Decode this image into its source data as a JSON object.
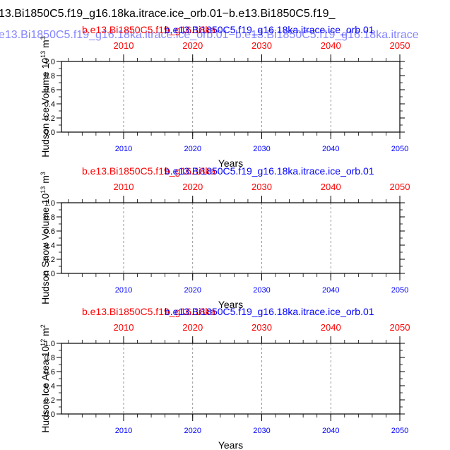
{
  "page": {
    "title_line1": "13.Bi1850C5.f19_g16.18ka.itrace.ice_orb.01−b.e13.Bi1850C5.f19_",
    "title_line2": "e13.Bi1850C5.f19_g16.18ka.itrace.ice_orb.01−b.e13.Bi1850C5.f19_g16.18ka.itrace"
  },
  "colors": {
    "red": "#ff0000",
    "blue": "#0000ff",
    "black": "#000000",
    "grid": "#808080"
  },
  "chart_data": [
    {
      "type": "line",
      "title_left": "b.e13.Bi1850C5.f19_g16.18ka",
      "title_right": "b.e13.Bi1850C5.f19_g16.18ka.itrace.ice_orb.01",
      "ylabel": "Hudson Ice Volume 10",
      "ylabel_exp": "13",
      "ylabel_unit": " m",
      "ylabel_unit_exp": "3",
      "xlabel": "Years",
      "ylim": [
        0,
        1
      ],
      "xlim": [
        2001,
        2050
      ],
      "xticks": [
        "2010",
        "2020",
        "2030",
        "2040",
        "2050"
      ],
      "top_xticks": [
        "2010",
        "2020",
        "2030",
        "2040",
        "2050"
      ],
      "yticks": [
        "0.0",
        "0.2",
        "0.4",
        "0.6",
        "0.8",
        "1.0"
      ],
      "grid": "vertical dashed",
      "series": []
    },
    {
      "type": "line",
      "title_left": "b.e13.Bi1850C5.f19_g16.18ka",
      "title_right": "b.e13.Bi1850C5.f19_g16.18ka.itrace.ice_orb.01",
      "ylabel": "Hudson Snow Volume 10",
      "ylabel_exp": "13",
      "ylabel_unit": " m",
      "ylabel_unit_exp": "3",
      "xlabel": "Years",
      "ylim": [
        0,
        1
      ],
      "xlim": [
        2001,
        2050
      ],
      "xticks": [
        "2010",
        "2020",
        "2030",
        "2040",
        "2050"
      ],
      "top_xticks": [
        "2010",
        "2020",
        "2030",
        "2040",
        "2050"
      ],
      "yticks": [
        "0.0",
        "0.2",
        "0.4",
        "0.6",
        "0.8",
        "1.0"
      ],
      "grid": "vertical dashed",
      "series": []
    },
    {
      "type": "line",
      "title_left": "b.e13.Bi1850C5.f19_g16.18ka",
      "title_right": "b.e13.Bi1850C5.f19_g16.18ka.itrace.ice_orb.01",
      "ylabel": "Hudson Ice Area 10",
      "ylabel_exp": "12",
      "ylabel_unit": " m",
      "ylabel_unit_exp": "2",
      "xlabel": "Years",
      "ylim": [
        0,
        1
      ],
      "xlim": [
        2001,
        2050
      ],
      "xticks": [
        "2010",
        "2020",
        "2030",
        "2040",
        "2050"
      ],
      "top_xticks": [
        "2010",
        "2020",
        "2030",
        "2040",
        "2050"
      ],
      "yticks": [
        "0.0",
        "0.2",
        "0.4",
        "0.6",
        "0.8",
        "1.0"
      ],
      "grid": "vertical dashed",
      "series": []
    }
  ]
}
